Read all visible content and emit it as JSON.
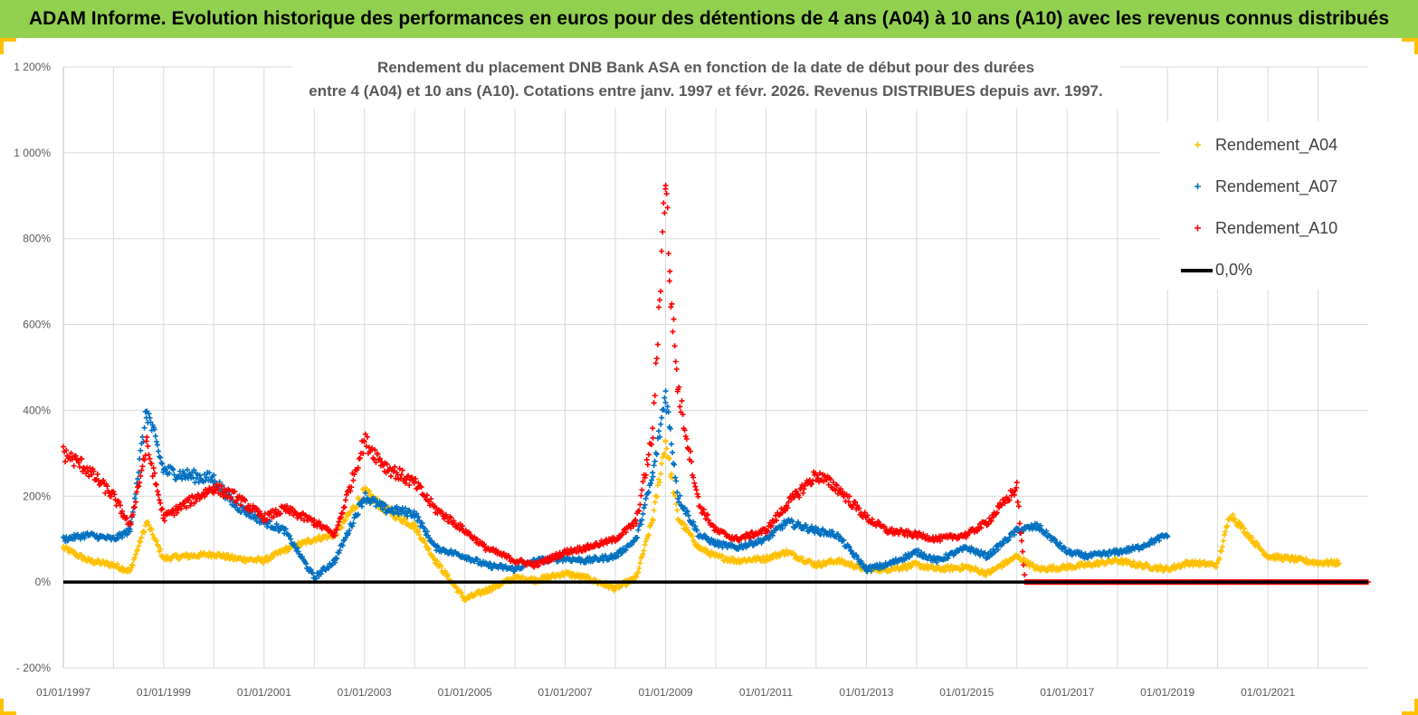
{
  "header": {
    "banner": "ADAM Informe. Evolution historique des performances en euros pour des détentions de 4 ans (A04) à 10 ans (A10) avec les revenus connus distribués"
  },
  "chart_data": {
    "type": "scatter",
    "title_line1": "Rendement du placement DNB Bank ASA en fonction de la date de début pour des durées",
    "title_line2": "entre 4 (A04) et 10 ans (A10). Cotations entre janv. 1997 et févr. 2026. Revenus DISTRIBUES depuis avr. 1997.",
    "xlim": [
      "1997-01-01",
      "2023-01-01"
    ],
    "ylim": [
      -200,
      1200
    ],
    "y_ticks": [
      -200,
      0,
      200,
      400,
      600,
      800,
      1000,
      1200
    ],
    "y_tick_labels": [
      "- 200%",
      "0%",
      "200%",
      "400%",
      "600%",
      "800%",
      "1 000%",
      "1 200%"
    ],
    "x_tick_labels": [
      "01/01/1997",
      "01/01/1999",
      "01/01/2001",
      "01/01/2003",
      "01/01/2005",
      "01/01/2007",
      "01/01/2009",
      "01/01/2011",
      "01/01/2013",
      "01/01/2015",
      "01/01/2017",
      "01/01/2019",
      "01/01/2021"
    ],
    "x_tick_dates": [
      "1997-01-01",
      "1999-01-01",
      "2001-01-01",
      "2003-01-01",
      "2005-01-01",
      "2007-01-01",
      "2009-01-01",
      "2011-01-01",
      "2013-01-01",
      "2015-01-01",
      "2017-01-01",
      "2019-01-01",
      "2021-01-01"
    ],
    "grid": true,
    "legend_position": "top-right",
    "legend": [
      "Rendement_A04",
      "Rendement_A07",
      "Rendement_A10",
      "0,0%"
    ],
    "baseline": {
      "name": "0,0%",
      "value": 0,
      "color": "#000000"
    },
    "series": [
      {
        "name": "Rendement_A04",
        "color": "#ffc000",
        "points": [
          [
            "1997-01-01",
            80
          ],
          [
            "1997-07-01",
            50
          ],
          [
            "1998-01-01",
            40
          ],
          [
            "1998-05-01",
            25
          ],
          [
            "1998-09-01",
            140
          ],
          [
            "1999-01-01",
            55
          ],
          [
            "1999-06-01",
            60
          ],
          [
            "2000-01-01",
            65
          ],
          [
            "2000-06-01",
            55
          ],
          [
            "2001-01-01",
            50
          ],
          [
            "2001-06-01",
            75
          ],
          [
            "2002-01-01",
            100
          ],
          [
            "2002-06-01",
            110
          ],
          [
            "2003-01-01",
            210
          ],
          [
            "2003-06-01",
            170
          ],
          [
            "2004-01-01",
            130
          ],
          [
            "2004-06-01",
            50
          ],
          [
            "2005-01-01",
            -40
          ],
          [
            "2005-06-01",
            -20
          ],
          [
            "2006-01-01",
            10
          ],
          [
            "2006-06-01",
            5
          ],
          [
            "2007-01-01",
            20
          ],
          [
            "2007-06-01",
            10
          ],
          [
            "2008-01-01",
            -15
          ],
          [
            "2008-06-01",
            10
          ],
          [
            "2008-10-01",
            150
          ],
          [
            "2009-01-01",
            330
          ],
          [
            "2009-04-01",
            150
          ],
          [
            "2009-09-01",
            80
          ],
          [
            "2010-01-01",
            60
          ],
          [
            "2010-06-01",
            50
          ],
          [
            "2011-01-01",
            55
          ],
          [
            "2011-06-01",
            70
          ],
          [
            "2012-01-01",
            40
          ],
          [
            "2012-06-01",
            50
          ],
          [
            "2013-01-01",
            30
          ],
          [
            "2013-06-01",
            30
          ],
          [
            "2014-01-01",
            40
          ],
          [
            "2014-06-01",
            30
          ],
          [
            "2015-01-01",
            35
          ],
          [
            "2015-06-01",
            20
          ],
          [
            "2016-01-01",
            60
          ],
          [
            "2016-06-01",
            30
          ],
          [
            "2017-01-01",
            35
          ],
          [
            "2017-06-01",
            40
          ],
          [
            "2018-01-01",
            50
          ],
          [
            "2018-06-01",
            40
          ],
          [
            "2019-01-01",
            30
          ],
          [
            "2019-06-01",
            45
          ],
          [
            "2020-01-01",
            40
          ],
          [
            "2020-04-01",
            160
          ],
          [
            "2020-10-01",
            90
          ],
          [
            "2021-01-01",
            60
          ],
          [
            "2021-06-01",
            55
          ],
          [
            "2022-01-01",
            45
          ],
          [
            "2022-06-01",
            45
          ]
        ]
      },
      {
        "name": "Rendement_A07",
        "color": "#0070c0",
        "points": [
          [
            "1997-01-01",
            100
          ],
          [
            "1997-07-01",
            110
          ],
          [
            "1998-01-01",
            100
          ],
          [
            "1998-05-01",
            120
          ],
          [
            "1998-09-01",
            400
          ],
          [
            "1999-01-01",
            260
          ],
          [
            "1999-06-01",
            250
          ],
          [
            "2000-01-01",
            240
          ],
          [
            "2000-06-01",
            180
          ],
          [
            "2001-01-01",
            140
          ],
          [
            "2001-06-01",
            120
          ],
          [
            "2002-01-01",
            10
          ],
          [
            "2002-06-01",
            50
          ],
          [
            "2003-01-01",
            200
          ],
          [
            "2003-06-01",
            170
          ],
          [
            "2004-01-01",
            160
          ],
          [
            "2004-06-01",
            80
          ],
          [
            "2005-01-01",
            60
          ],
          [
            "2005-06-01",
            40
          ],
          [
            "2006-01-01",
            30
          ],
          [
            "2006-06-01",
            50
          ],
          [
            "2007-01-01",
            55
          ],
          [
            "2007-06-01",
            50
          ],
          [
            "2008-01-01",
            60
          ],
          [
            "2008-06-01",
            100
          ],
          [
            "2008-10-01",
            250
          ],
          [
            "2009-01-01",
            440
          ],
          [
            "2009-04-01",
            200
          ],
          [
            "2009-09-01",
            110
          ],
          [
            "2010-01-01",
            90
          ],
          [
            "2010-06-01",
            80
          ],
          [
            "2011-01-01",
            100
          ],
          [
            "2011-06-01",
            140
          ],
          [
            "2012-01-01",
            120
          ],
          [
            "2012-06-01",
            110
          ],
          [
            "2013-01-01",
            30
          ],
          [
            "2013-06-01",
            40
          ],
          [
            "2014-01-01",
            70
          ],
          [
            "2014-06-01",
            50
          ],
          [
            "2015-01-01",
            80
          ],
          [
            "2015-06-01",
            60
          ],
          [
            "2016-01-01",
            120
          ],
          [
            "2016-06-01",
            130
          ],
          [
            "2017-01-01",
            70
          ],
          [
            "2017-06-01",
            60
          ],
          [
            "2018-01-01",
            70
          ],
          [
            "2018-06-01",
            80
          ],
          [
            "2019-01-01",
            110
          ]
        ]
      },
      {
        "name": "Rendement_A10",
        "color": "#ff0000",
        "points": [
          [
            "1997-01-01",
            300
          ],
          [
            "1997-06-01",
            270
          ],
          [
            "1998-01-01",
            200
          ],
          [
            "1998-05-01",
            130
          ],
          [
            "1998-09-01",
            320
          ],
          [
            "1999-01-01",
            150
          ],
          [
            "1999-06-01",
            180
          ],
          [
            "2000-01-01",
            220
          ],
          [
            "2000-06-01",
            200
          ],
          [
            "2001-01-01",
            150
          ],
          [
            "2001-06-01",
            170
          ],
          [
            "2002-01-01",
            140
          ],
          [
            "2002-06-01",
            110
          ],
          [
            "2003-01-01",
            330
          ],
          [
            "2003-06-01",
            270
          ],
          [
            "2004-01-01",
            230
          ],
          [
            "2004-06-01",
            170
          ],
          [
            "2005-01-01",
            120
          ],
          [
            "2005-06-01",
            80
          ],
          [
            "2006-01-01",
            50
          ],
          [
            "2006-06-01",
            40
          ],
          [
            "2007-01-01",
            70
          ],
          [
            "2007-06-01",
            80
          ],
          [
            "2008-01-01",
            100
          ],
          [
            "2008-06-01",
            140
          ],
          [
            "2008-10-01",
            350
          ],
          [
            "2009-01-01",
            950
          ],
          [
            "2009-02-01",
            700
          ],
          [
            "2009-04-01",
            450
          ],
          [
            "2009-09-01",
            180
          ],
          [
            "2010-01-01",
            120
          ],
          [
            "2010-06-01",
            100
          ],
          [
            "2011-01-01",
            120
          ],
          [
            "2011-06-01",
            180
          ],
          [
            "2012-01-01",
            250
          ],
          [
            "2012-06-01",
            220
          ],
          [
            "2013-01-01",
            150
          ],
          [
            "2013-06-01",
            120
          ],
          [
            "2014-01-01",
            110
          ],
          [
            "2014-06-01",
            100
          ],
          [
            "2015-01-01",
            110
          ],
          [
            "2015-06-01",
            140
          ],
          [
            "2016-01-01",
            220
          ],
          [
            "2016-03-01",
            0
          ],
          [
            "2017-01-01",
            0
          ],
          [
            "2018-01-01",
            0
          ],
          [
            "2019-01-01",
            0
          ],
          [
            "2020-01-01",
            0
          ],
          [
            "2021-01-01",
            0
          ],
          [
            "2022-01-01",
            0
          ],
          [
            "2022-12-31",
            0
          ]
        ]
      }
    ]
  }
}
